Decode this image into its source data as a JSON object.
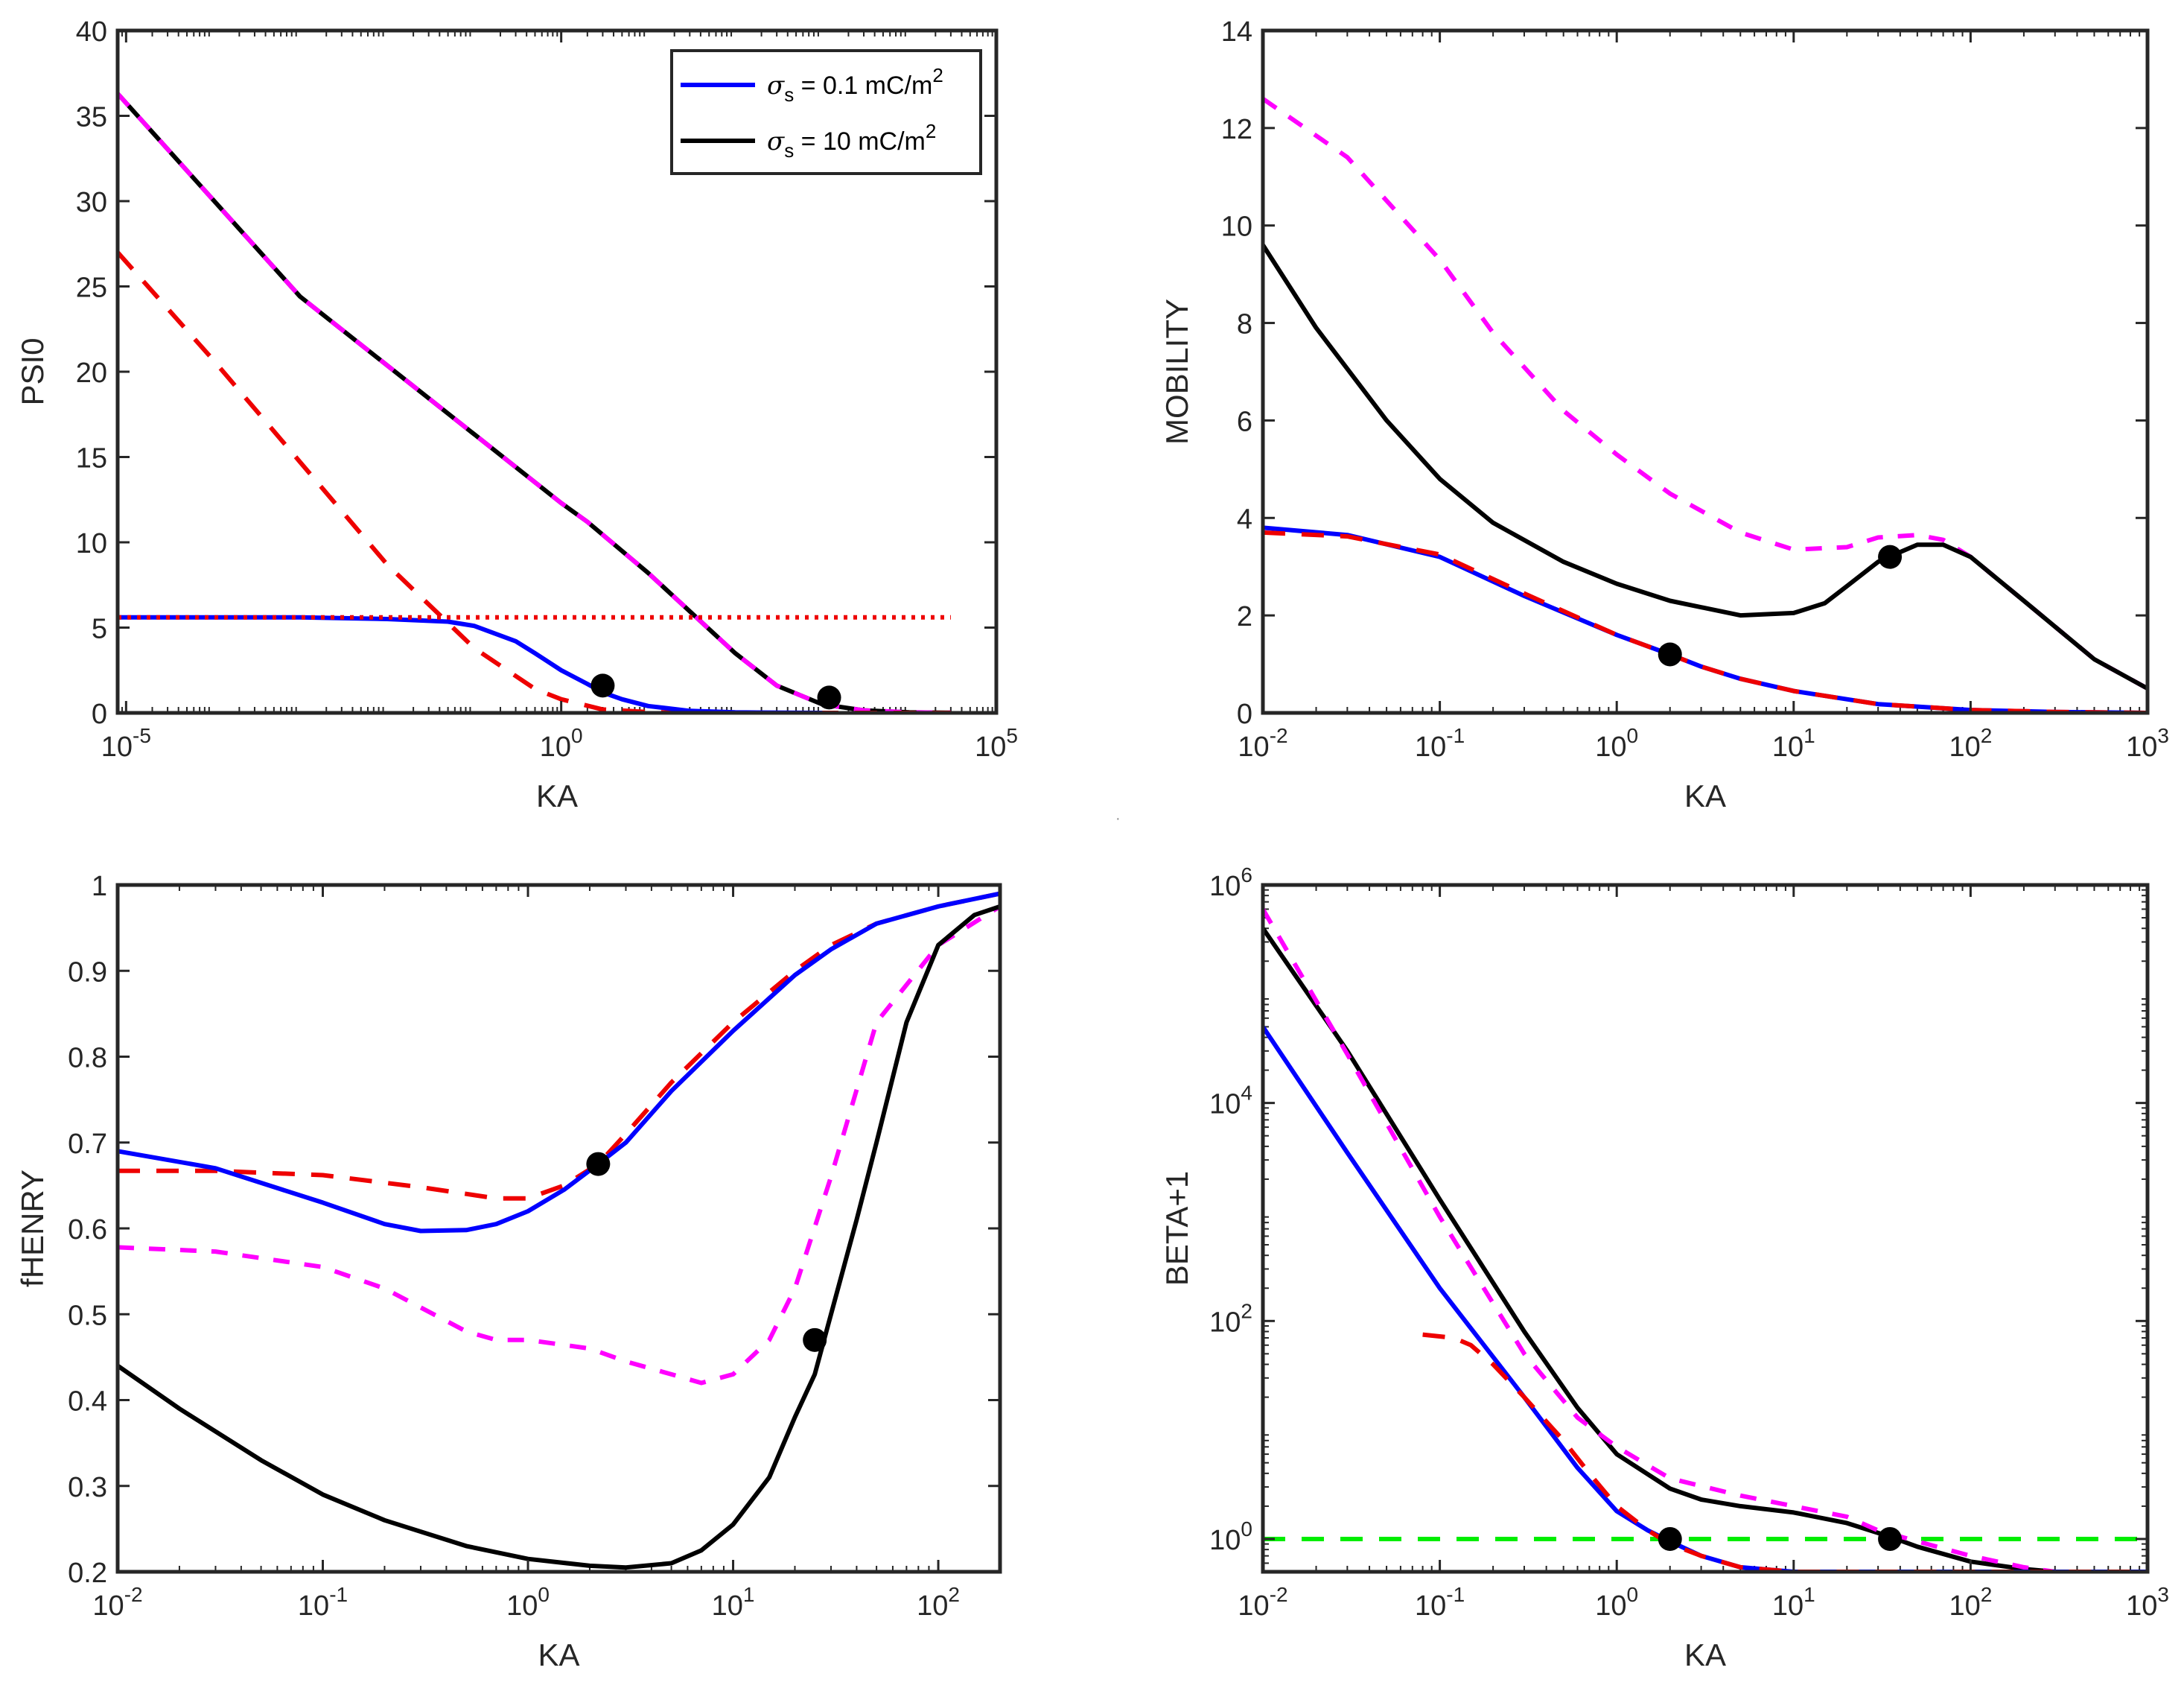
{
  "figure": {
    "legend": [
      {
        "label": "σs = 0.1 mC/m2",
        "color": "#0000ff"
      },
      {
        "label": "σs = 10 mC/m2",
        "color": "#000000"
      }
    ],
    "legend_display": [
      {
        "sym": "σ",
        "sub": "s",
        "mid": " = 0.1 mC/m",
        "sup": "2"
      },
      {
        "sym": "σ",
        "sub": "s",
        "mid": " = 10 mC/m",
        "sup": "2"
      }
    ]
  },
  "chart_data": [
    {
      "id": "psi0",
      "type": "line",
      "xscale": "log",
      "yscale": "linear",
      "xlabel": "KA",
      "ylabel": "PSI0",
      "xlim": [
        8e-06,
        100000
      ],
      "ylim": [
        0,
        40
      ],
      "xticks": [
        {
          "v": 1e-05,
          "b": "10",
          "e": "-5"
        },
        {
          "v": 1,
          "b": "10",
          "e": "0"
        },
        {
          "v": 100000,
          "b": "10",
          "e": "5"
        }
      ],
      "yticks": [
        {
          "v": 0,
          "t": "0"
        },
        {
          "v": 5,
          "t": "5"
        },
        {
          "v": 10,
          "t": "10"
        },
        {
          "v": 15,
          "t": "15"
        },
        {
          "v": 20,
          "t": "20"
        },
        {
          "v": 25,
          "t": "25"
        },
        {
          "v": 30,
          "t": "30"
        },
        {
          "v": 35,
          "t": "35"
        },
        {
          "v": 40,
          "t": "40"
        }
      ],
      "series": [
        {
          "name": "black solid",
          "color": "#000000",
          "dash": "",
          "x": [
            8e-06,
            0.001,
            1,
            2,
            10,
            100,
            300,
            1000,
            3000,
            10000,
            30000
          ],
          "y": [
            36.3,
            24.4,
            12.3,
            11.2,
            8.2,
            3.5,
            1.6,
            0.5,
            0.15,
            0.03,
            0.01
          ]
        },
        {
          "name": "magenta dashed",
          "color": "#ff00ff",
          "dash": "22 20",
          "x": [
            8e-06,
            0.001,
            1,
            2,
            10,
            100,
            300,
            1000,
            3000,
            10000,
            30000
          ],
          "y": [
            36.3,
            24.4,
            12.3,
            11.2,
            8.2,
            3.5,
            1.6,
            0.5,
            0.15,
            0.03,
            0.01
          ]
        },
        {
          "name": "red dashed",
          "color": "#ee0000",
          "dash": "30 22",
          "x": [
            8e-06,
            0.0001,
            0.001,
            0.01,
            0.1,
            0.5,
            1,
            3,
            10,
            30,
            100,
            1000,
            30000
          ],
          "y": [
            27,
            20.7,
            14.7,
            8.7,
            3.8,
            1.4,
            0.8,
            0.2,
            0.05,
            0.01,
            0,
            0,
            0
          ]
        },
        {
          "name": "blue solid",
          "color": "#0000ff",
          "dash": "",
          "x": [
            8e-06,
            0.001,
            0.01,
            0.05,
            0.1,
            0.3,
            0.5,
            1,
            2,
            3,
            5,
            10,
            30,
            100,
            1000
          ],
          "y": [
            5.6,
            5.6,
            5.5,
            5.35,
            5.1,
            4.2,
            3.5,
            2.5,
            1.7,
            1.2,
            0.8,
            0.4,
            0.12,
            0.03,
            0
          ]
        },
        {
          "name": "red dotted",
          "color": "#ee0000",
          "dash": "5 8",
          "x": [
            8e-06,
            30000
          ],
          "y": [
            5.6,
            5.6
          ]
        }
      ],
      "markers": [
        {
          "x": 3,
          "y": 1.6
        },
        {
          "x": 1200,
          "y": 0.9
        }
      ]
    },
    {
      "id": "mobility",
      "type": "line",
      "xscale": "log",
      "yscale": "linear",
      "xlabel": "KA",
      "ylabel": "MOBILITY",
      "xlim": [
        0.01,
        1000
      ],
      "ylim": [
        0,
        14
      ],
      "xticks": [
        {
          "v": 0.01,
          "b": "10",
          "e": "-2"
        },
        {
          "v": 0.1,
          "b": "10",
          "e": "-1"
        },
        {
          "v": 1,
          "b": "10",
          "e": "0"
        },
        {
          "v": 10,
          "b": "10",
          "e": "1"
        },
        {
          "v": 100,
          "b": "10",
          "e": "2"
        },
        {
          "v": 1000,
          "b": "10",
          "e": "3"
        }
      ],
      "yticks": [
        {
          "v": 0,
          "t": "0"
        },
        {
          "v": 2,
          "t": "2"
        },
        {
          "v": 4,
          "t": "4"
        },
        {
          "v": 6,
          "t": "6"
        },
        {
          "v": 8,
          "t": "8"
        },
        {
          "v": 10,
          "t": "10"
        },
        {
          "v": 12,
          "t": "12"
        },
        {
          "v": 14,
          "t": "14"
        }
      ],
      "series": [
        {
          "name": "magenta dashed",
          "color": "#ff00ff",
          "dash": "22 20",
          "x": [
            0.01,
            0.03,
            0.1,
            0.2,
            0.5,
            1,
            2,
            5,
            10,
            20,
            30,
            50,
            70,
            100,
            200,
            500,
            1000
          ],
          "y": [
            12.6,
            11.4,
            9.3,
            7.8,
            6.2,
            5.3,
            4.5,
            3.7,
            3.35,
            3.4,
            3.6,
            3.65,
            3.55,
            3.2,
            2.3,
            1.1,
            0.5
          ]
        },
        {
          "name": "black solid",
          "color": "#000000",
          "dash": "",
          "x": [
            0.01,
            0.02,
            0.05,
            0.1,
            0.2,
            0.5,
            1,
            2,
            5,
            10,
            15,
            20,
            30,
            40,
            50,
            70,
            100,
            200,
            500,
            1000
          ],
          "y": [
            9.6,
            7.9,
            6.0,
            4.8,
            3.9,
            3.1,
            2.65,
            2.3,
            2.0,
            2.05,
            2.25,
            2.6,
            3.1,
            3.3,
            3.45,
            3.45,
            3.2,
            2.3,
            1.1,
            0.5
          ]
        },
        {
          "name": "blue solid",
          "color": "#0000ff",
          "dash": "",
          "x": [
            0.01,
            0.03,
            0.1,
            0.3,
            1,
            2,
            3,
            5,
            10,
            30,
            100,
            300,
            1000
          ],
          "y": [
            3.8,
            3.65,
            3.2,
            2.4,
            1.6,
            1.2,
            0.95,
            0.7,
            0.45,
            0.18,
            0.06,
            0.02,
            0
          ]
        },
        {
          "name": "red dashed",
          "color": "#ee0000",
          "dash": "30 22",
          "x": [
            0.01,
            0.03,
            0.1,
            0.3,
            1,
            2,
            3,
            5,
            10,
            30,
            100,
            300,
            1000
          ],
          "y": [
            3.7,
            3.62,
            3.25,
            2.45,
            1.6,
            1.2,
            0.95,
            0.7,
            0.45,
            0.18,
            0.06,
            0.02,
            0
          ]
        }
      ],
      "markers": [
        {
          "x": 2,
          "y": 1.2
        },
        {
          "x": 35,
          "y": 3.2
        }
      ]
    },
    {
      "id": "fhenry",
      "type": "line",
      "xscale": "log",
      "yscale": "linear",
      "xlabel": "KA",
      "ylabel": "fHENRY",
      "xlim": [
        0.01,
        200
      ],
      "ylim": [
        0.2,
        1
      ],
      "xticks": [
        {
          "v": 0.01,
          "b": "10",
          "e": "-2"
        },
        {
          "v": 0.1,
          "b": "10",
          "e": "-1"
        },
        {
          "v": 1,
          "b": "10",
          "e": "0"
        },
        {
          "v": 10,
          "b": "10",
          "e": "1"
        },
        {
          "v": 100,
          "b": "10",
          "e": "2"
        }
      ],
      "yticks": [
        {
          "v": 0.2,
          "t": "0.2"
        },
        {
          "v": 0.3,
          "t": "0.3"
        },
        {
          "v": 0.4,
          "t": "0.4"
        },
        {
          "v": 0.5,
          "t": "0.5"
        },
        {
          "v": 0.6,
          "t": "0.6"
        },
        {
          "v": 0.7,
          "t": "0.7"
        },
        {
          "v": 0.8,
          "t": "0.8"
        },
        {
          "v": 0.9,
          "t": "0.9"
        },
        {
          "v": 1,
          "t": "1"
        }
      ],
      "series": [
        {
          "name": "red dashed",
          "color": "#ee0000",
          "dash": "30 22",
          "x": [
            0.01,
            0.03,
            0.1,
            0.3,
            0.7,
            1,
            1.5,
            2.2,
            3,
            5,
            10,
            20,
            30,
            50,
            100,
            200
          ],
          "y": [
            0.667,
            0.667,
            0.662,
            0.648,
            0.635,
            0.635,
            0.65,
            0.675,
            0.71,
            0.77,
            0.84,
            0.9,
            0.93,
            0.955,
            0.975,
            0.99
          ]
        },
        {
          "name": "blue solid",
          "color": "#0000ff",
          "dash": "",
          "x": [
            0.01,
            0.03,
            0.1,
            0.2,
            0.3,
            0.5,
            0.7,
            1,
            1.5,
            2.2,
            3,
            5,
            10,
            20,
            30,
            50,
            100,
            200
          ],
          "y": [
            0.69,
            0.67,
            0.63,
            0.605,
            0.597,
            0.598,
            0.605,
            0.62,
            0.645,
            0.675,
            0.7,
            0.76,
            0.83,
            0.895,
            0.925,
            0.955,
            0.975,
            0.99
          ]
        },
        {
          "name": "magenta dashed",
          "color": "#ff00ff",
          "dash": "22 20",
          "x": [
            0.01,
            0.03,
            0.1,
            0.2,
            0.5,
            0.7,
            1,
            2,
            3,
            5,
            7,
            10,
            15,
            20,
            30,
            50,
            100,
            200
          ],
          "y": [
            0.578,
            0.573,
            0.555,
            0.53,
            0.48,
            0.47,
            0.47,
            0.46,
            0.445,
            0.43,
            0.42,
            0.43,
            0.47,
            0.53,
            0.66,
            0.84,
            0.93,
            0.975
          ]
        },
        {
          "name": "black solid",
          "color": "#000000",
          "dash": "",
          "x": [
            0.01,
            0.02,
            0.05,
            0.1,
            0.2,
            0.5,
            1,
            2,
            3,
            5,
            7,
            10,
            15,
            20,
            25,
            30,
            40,
            50,
            70,
            100,
            150,
            200
          ],
          "y": [
            0.44,
            0.39,
            0.33,
            0.29,
            0.26,
            0.23,
            0.215,
            0.207,
            0.205,
            0.21,
            0.225,
            0.255,
            0.31,
            0.38,
            0.43,
            0.5,
            0.61,
            0.7,
            0.84,
            0.93,
            0.965,
            0.975
          ]
        }
      ],
      "markers": [
        {
          "x": 2.2,
          "y": 0.675
        },
        {
          "x": 25,
          "y": 0.47
        }
      ]
    },
    {
      "id": "beta",
      "type": "line",
      "xscale": "log",
      "yscale": "log",
      "xlabel": "KA",
      "ylabel": "BETA+1",
      "xlim": [
        0.01,
        1000
      ],
      "ylim": [
        0.5,
        1000000
      ],
      "xticks": [
        {
          "v": 0.01,
          "b": "10",
          "e": "-2"
        },
        {
          "v": 0.1,
          "b": "10",
          "e": "-1"
        },
        {
          "v": 1,
          "b": "10",
          "e": "0"
        },
        {
          "v": 10,
          "b": "10",
          "e": "1"
        },
        {
          "v": 100,
          "b": "10",
          "e": "2"
        },
        {
          "v": 1000,
          "b": "10",
          "e": "3"
        }
      ],
      "yticks": [
        {
          "v": 1,
          "b": "10",
          "e": "0"
        },
        {
          "v": 100,
          "b": "10",
          "e": "2"
        },
        {
          "v": 10000,
          "b": "10",
          "e": "4"
        },
        {
          "v": 1000000,
          "b": "10",
          "e": "6"
        }
      ],
      "series": [
        {
          "name": "green dashed",
          "color": "#00ee00",
          "dash": "30 22",
          "x": [
            0.01,
            1000
          ],
          "y": [
            1,
            1
          ]
        },
        {
          "name": "black solid",
          "color": "#000000",
          "dash": "",
          "x": [
            0.01,
            0.03,
            0.1,
            0.3,
            0.6,
            1,
            2,
            3,
            5,
            10,
            20,
            35,
            50,
            100,
            200,
            300,
            1000
          ],
          "y": [
            400000,
            30000,
            1300,
            80,
            16,
            6,
            2.9,
            2.3,
            2.0,
            1.75,
            1.4,
            1.05,
            0.85,
            0.62,
            0.53,
            0.5,
            0.5
          ]
        },
        {
          "name": "magenta dashed",
          "color": "#ff00ff",
          "dash": "22 20",
          "x": [
            0.01,
            0.03,
            0.1,
            0.3,
            0.6,
            1,
            2,
            5,
            10,
            20,
            30,
            50,
            100,
            200,
            300,
            1000
          ],
          "y": [
            600000,
            28000,
            900,
            50,
            13,
            7,
            3.6,
            2.5,
            2.0,
            1.6,
            1.2,
            0.95,
            0.7,
            0.55,
            0.5,
            0.5
          ]
        },
        {
          "name": "blue solid",
          "color": "#0000ff",
          "dash": "",
          "x": [
            0.01,
            0.03,
            0.1,
            0.3,
            0.6,
            1,
            1.5,
            2,
            3,
            5,
            10,
            30,
            100,
            1000
          ],
          "y": [
            50000,
            3500,
            200,
            20,
            4.5,
            1.8,
            1.2,
            0.95,
            0.7,
            0.55,
            0.5,
            0.5,
            0.5,
            0.5
          ]
        },
        {
          "name": "red dashed",
          "color": "#ee0000",
          "dash": "30 22",
          "x": [
            0.08,
            0.12,
            0.15,
            0.2,
            0.3,
            0.5,
            0.7,
            1,
            1.5,
            2,
            3,
            5,
            10,
            30,
            100,
            1000
          ],
          "y": [
            75,
            70,
            60,
            40,
            20,
            8,
            4,
            2,
            1.2,
            0.9,
            0.7,
            0.55,
            0.5,
            0.5,
            0.5,
            0.5
          ]
        }
      ],
      "markers": [
        {
          "x": 2,
          "y": 1
        },
        {
          "x": 35,
          "y": 1
        }
      ]
    }
  ]
}
